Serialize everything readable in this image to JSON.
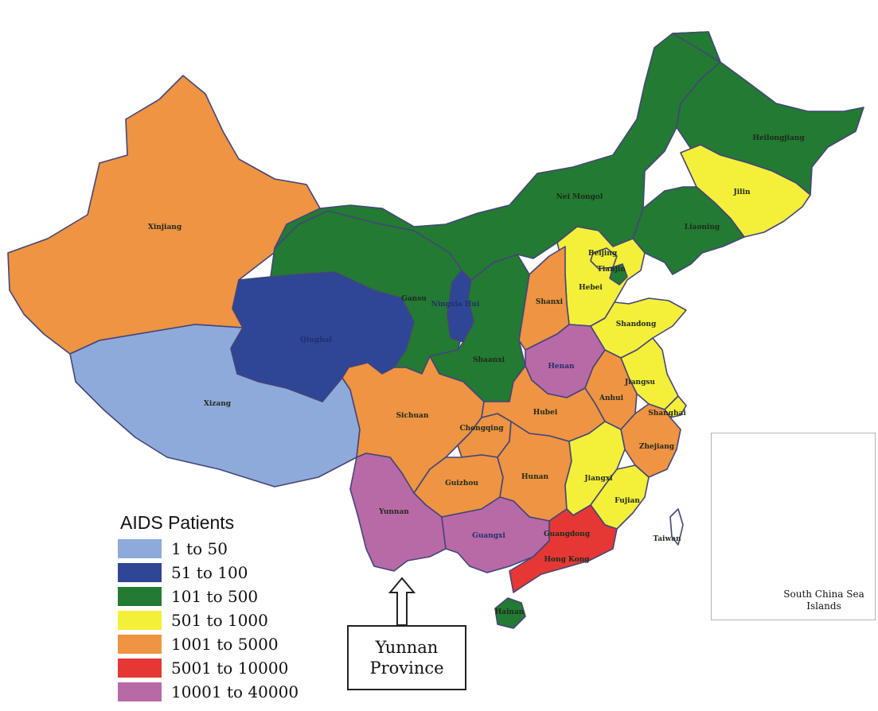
{
  "colors": {
    "c1": "#8eaadb",
    "c2": "#2f4596",
    "c3": "#237a32",
    "c4": "#f4f03a",
    "c5": "#ee9442",
    "c6": "#e53834",
    "c7": "#b86aa6"
  },
  "legend": {
    "title": "AIDS Patients",
    "items": [
      {
        "label": "1 to 50",
        "color": "#8eaadb"
      },
      {
        "label": "51 to 100",
        "color": "#2f4596"
      },
      {
        "label": "101 to 500",
        "color": "#237a32"
      },
      {
        "label": "501 to 1000",
        "color": "#f4f03a"
      },
      {
        "label": "1001 to 5000",
        "color": "#ee9442"
      },
      {
        "label": "5001 to 10000",
        "color": "#e53834"
      },
      {
        "label": "10001 to 40000",
        "color": "#b86aa6"
      }
    ]
  },
  "provinces": {
    "xinjiang": "Xinjiang",
    "xizang": "Xizang",
    "qinghai": "Qinghai",
    "gansu": "Gansu",
    "ningxia": "Ningxia Hui",
    "neimongol": "Nei Mongol",
    "heilongjiang": "Heilongjiang",
    "jilin": "Jilin",
    "liaoning": "Liaoning",
    "beijing": "Beijing",
    "tianjin": "Tianjin",
    "hebei": "Hebei",
    "shanxi": "Shanxi",
    "shandong": "Shandong",
    "shaanxi": "Shaanxi",
    "henan": "Henan",
    "jiangsu": "Jiangsu",
    "anhui": "Anhui",
    "shanghai": "Shanghai",
    "sichuan": "Sichuan",
    "chongqing": "Chongqing",
    "hubei": "Hubei",
    "zhejiang": "Zhejiang",
    "guizhou": "Guizhou",
    "hunan": "Hunan",
    "jiangxi": "Jiangxi",
    "fujian": "Fujian",
    "yunnan": "Yunnan",
    "guangxi": "Guangxi",
    "guangdong": "Guangdong",
    "hongkong": "Hong Kong",
    "taiwan": "Taiwan",
    "hainan": "Hainan"
  },
  "inset": {
    "label_line1": "South China Sea",
    "label_line2": "Islands"
  },
  "callout": {
    "line1": "Yunnan",
    "line2": "Province"
  }
}
